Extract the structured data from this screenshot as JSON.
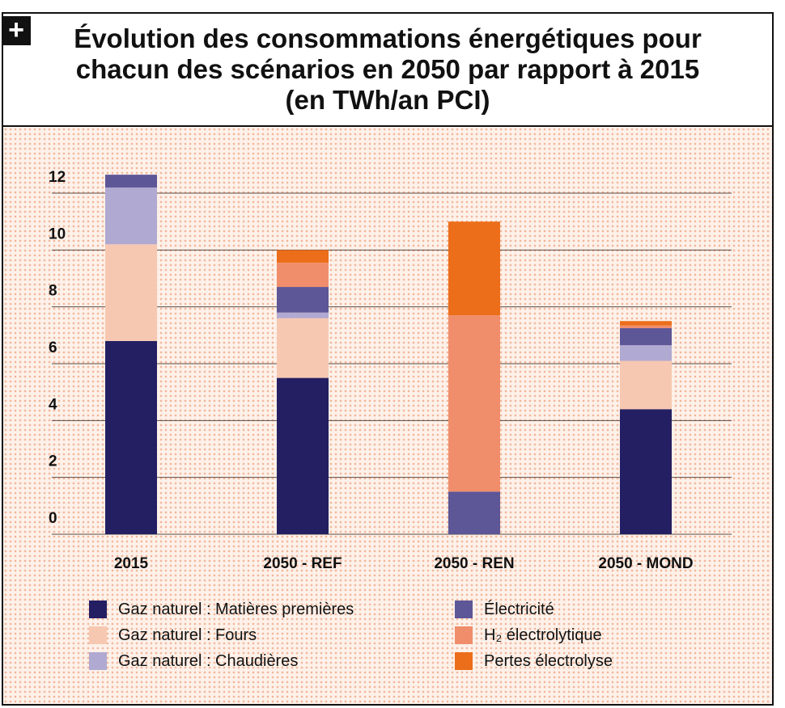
{
  "header": {
    "plus_symbol": "+",
    "title": "Évolution des consommations énergétiques pour chacun des scénarios en 2050 par rapport à 2015 (en TWh/an PCI)"
  },
  "chart_data": {
    "type": "bar",
    "stacked": true,
    "title": "Évolution des consommations énergétiques pour chacun des scénarios en 2050 par rapport à 2015 (en TWh/an PCI)",
    "xlabel": "",
    "ylabel": "",
    "categories": [
      "2015",
      "2050 - REF",
      "2050 - REN",
      "2050 - MOND"
    ],
    "ylim": [
      0,
      12
    ],
    "yticks": [
      "12",
      "10",
      "8",
      "6",
      "4",
      "2",
      "0"
    ],
    "ytick_values": [
      12,
      10,
      8,
      6,
      4,
      2,
      0
    ],
    "grid": true,
    "legend_position": "bottom",
    "series": [
      {
        "name": "Gaz naturel  : Matières premières",
        "color": "#241f63",
        "values": [
          6.8,
          5.5,
          0,
          4.4
        ]
      },
      {
        "name": "Gaz naturel  : Fours",
        "color": "#f7c8b1",
        "values": [
          3.4,
          2.1,
          0,
          1.7
        ]
      },
      {
        "name": "Gaz naturel  : Chaudières",
        "color": "#b0a9d1",
        "values": [
          2.0,
          0.2,
          0,
          0.55
        ]
      },
      {
        "name": "Électricité",
        "color": "#5d5697",
        "values": [
          0.45,
          0.9,
          1.5,
          0.6
        ]
      },
      {
        "name": "H₂ électrolytique",
        "color": "#f08e6b",
        "values": [
          0,
          0.85,
          6.2,
          0.1
        ]
      },
      {
        "name": "Pertes électrolyse",
        "color": "#ec6e1a",
        "values": [
          0,
          0.45,
          3.3,
          0.15
        ]
      }
    ]
  }
}
